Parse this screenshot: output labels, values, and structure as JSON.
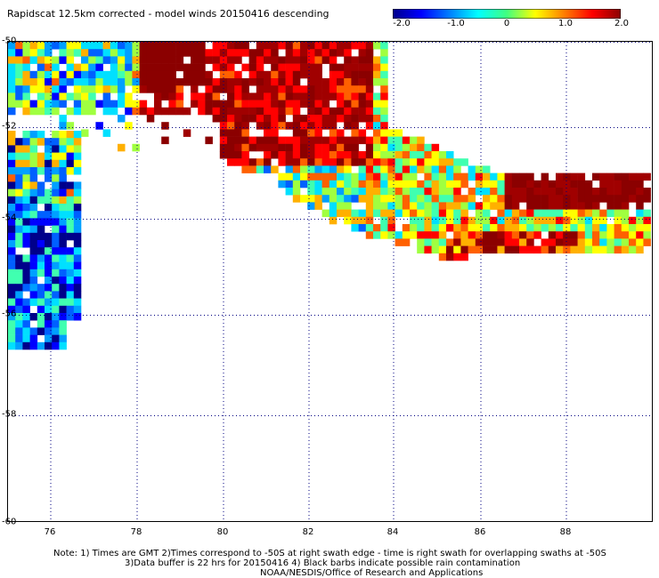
{
  "title": "Rapidscat 12.5km corrected - model winds 20150416 descending",
  "colorbar": {
    "ticks": [
      "-2.0",
      "-1.0",
      "0",
      "1.0",
      "2.0"
    ],
    "values": [
      -2.0,
      -1.0,
      0,
      1.0,
      2.0
    ],
    "colors": [
      "#00008b",
      "#0000ff",
      "#0080ff",
      "#00ffff",
      "#40ff80",
      "#ffff00",
      "#ff8000",
      "#ff0000",
      "#8b0000"
    ]
  },
  "y_labels": [
    "-50",
    "-52",
    "-54",
    "-56",
    "-58",
    "-60"
  ],
  "x_labels": [
    "76",
    "78",
    "80",
    "82",
    "84",
    "86",
    "88"
  ],
  "notes": {
    "line1": "Note: 1) Times are GMT 2)Times correspond to -50S at right swath edge - time is right swath for overlapping swaths at -50S",
    "line2": "3)Data buffer is 22 hrs for 20150416 4) Black barbs indicate possible rain contamination",
    "line3": "NOAA/NESDIS/Office of Research and Applications"
  },
  "map": {
    "lat_range": [
      -60,
      -50
    ],
    "lon_range": [
      75,
      90
    ],
    "grid": "dotted",
    "swaths": [
      {
        "name": "west-swath",
        "lat": [
          -52.2,
          -56.7
        ],
        "lon": [
          75.0,
          76.6
        ],
        "bias": "negative"
      },
      {
        "name": "main-swath",
        "lat": [
          -50.0,
          -54.8
        ],
        "lon": [
          75.0,
          89.9
        ],
        "bias": "mixed"
      }
    ]
  }
}
